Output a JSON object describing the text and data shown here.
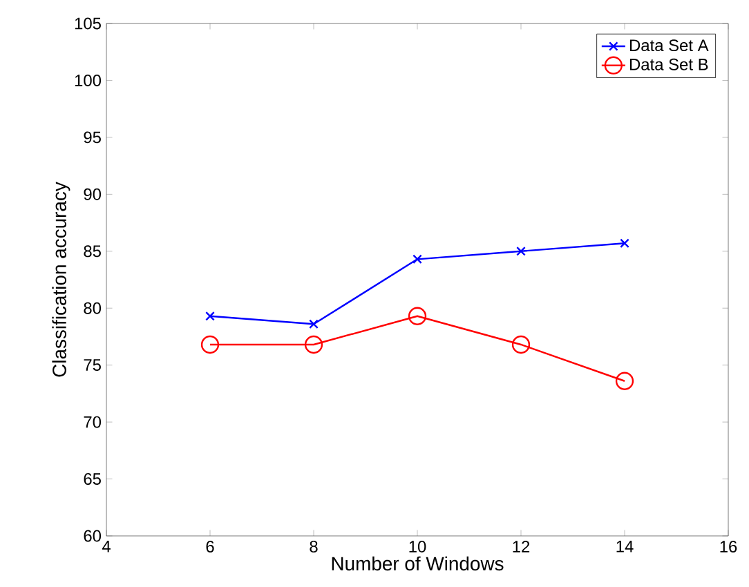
{
  "chart_data": {
    "type": "line",
    "xlabel": "Number of Windows",
    "ylabel": "Classification accuracy",
    "x": [
      6,
      8,
      10,
      12,
      14
    ],
    "series": [
      {
        "name": "Data Set A",
        "color": "#0000ff",
        "marker": "cross",
        "values": [
          79.3,
          78.6,
          84.3,
          85.0,
          85.7
        ]
      },
      {
        "name": "Data Set B",
        "color": "#ff0000",
        "marker": "circle",
        "values": [
          76.8,
          76.8,
          79.3,
          76.8,
          73.6
        ]
      }
    ],
    "xlim": [
      4,
      16
    ],
    "ylim": [
      60,
      105
    ],
    "xticks": [
      4,
      6,
      8,
      10,
      12,
      14,
      16
    ],
    "yticks": [
      60,
      65,
      70,
      75,
      80,
      85,
      90,
      95,
      100,
      105
    ],
    "legend": "top right",
    "grid": false,
    "line_style": "solid"
  }
}
